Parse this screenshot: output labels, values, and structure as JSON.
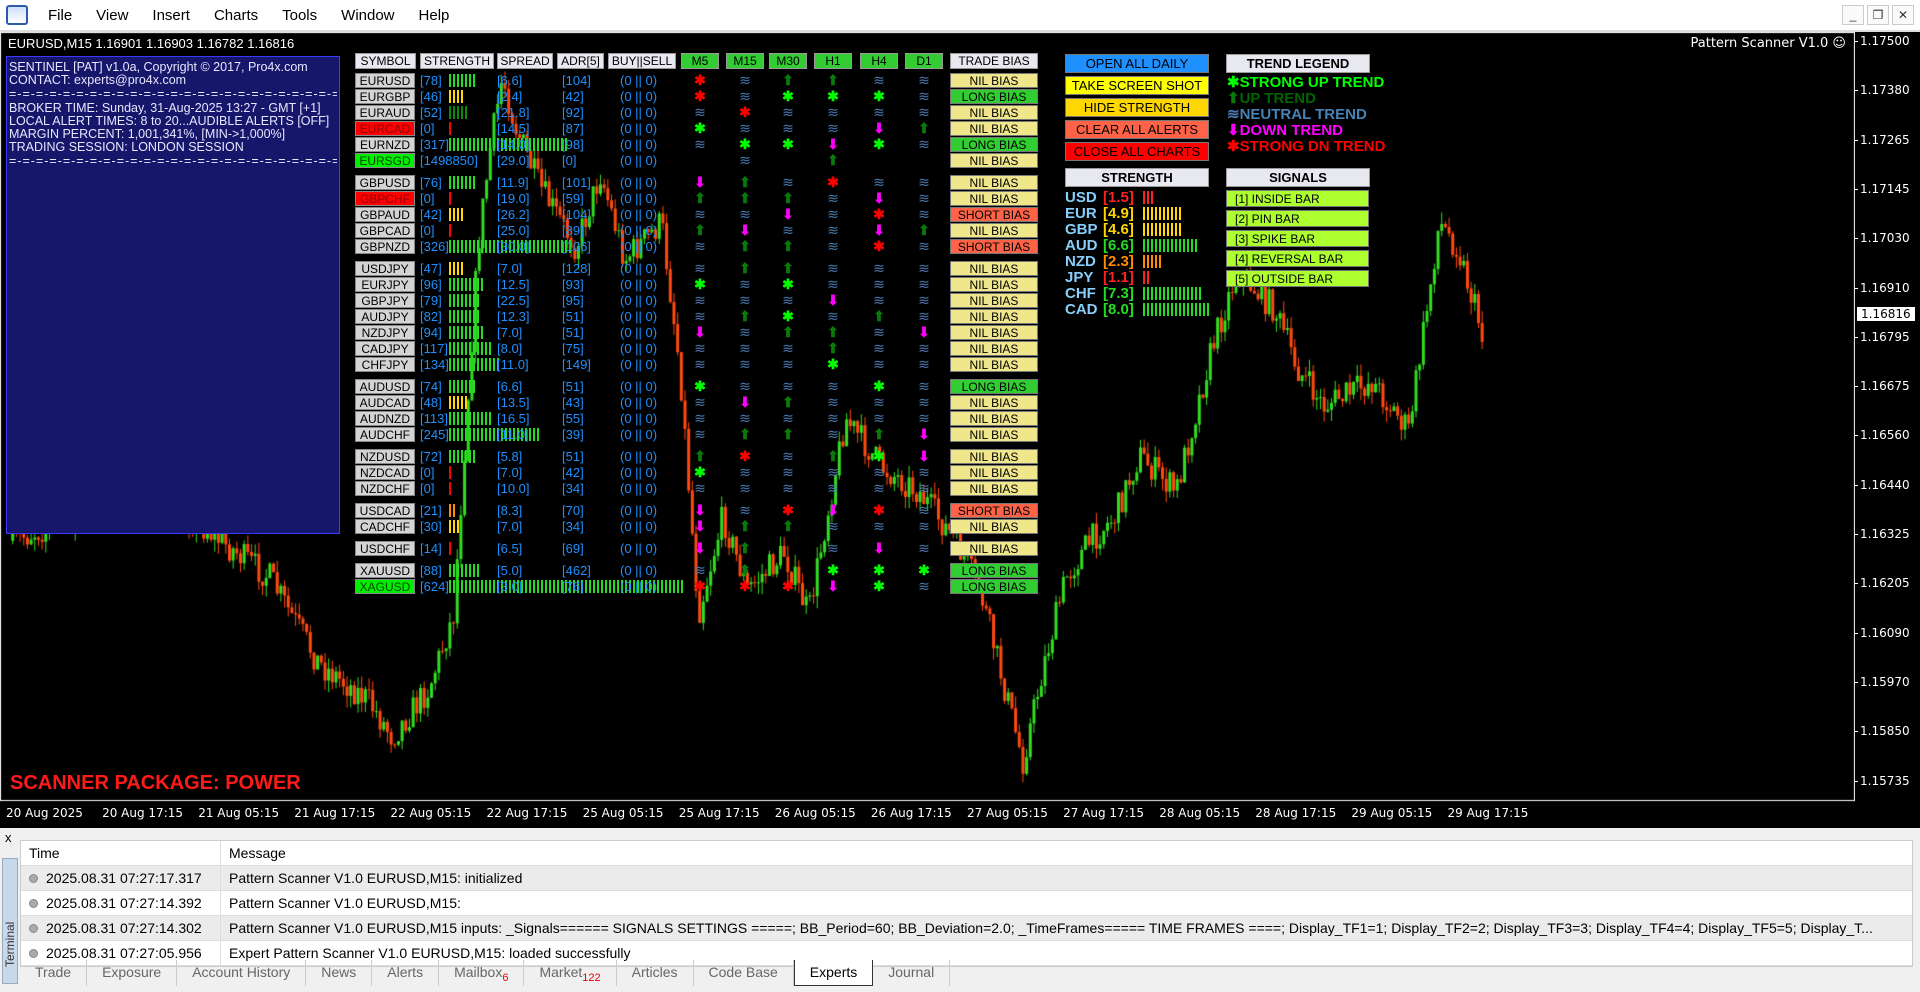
{
  "menu": [
    "File",
    "View",
    "Insert",
    "Charts",
    "Tools",
    "Window",
    "Help"
  ],
  "chart": {
    "title": "EURUSD,M15  1.16901 1.16903 1.16782 1.16816",
    "indicator": "Pattern Scanner V1.0 ☺",
    "current_price": "1.16816",
    "price_ticks": [
      "1.17500",
      "1.17380",
      "1.17265",
      "1.17145",
      "1.17030",
      "1.16910",
      "1.16795",
      "1.16675",
      "1.16560",
      "1.16440",
      "1.16325",
      "1.16205",
      "1.16090",
      "1.15970",
      "1.15850",
      "1.15735"
    ],
    "time_ticks": [
      "20 Aug 2025",
      "20 Aug 17:15",
      "21 Aug 05:15",
      "21 Aug 17:15",
      "22 Aug 05:15",
      "22 Aug 17:15",
      "25 Aug 05:15",
      "25 Aug 17:15",
      "26 Aug 05:15",
      "26 Aug 17:15",
      "27 Aug 05:15",
      "27 Aug 17:15",
      "28 Aug 05:15",
      "28 Aug 17:15",
      "29 Aug 05:15",
      "29 Aug 17:15"
    ],
    "up_color": "#33dd22",
    "down_color": "#ff4a10"
  },
  "info": {
    "lines": [
      "SENTINEL [PAT] v1.0a, Copyright © 2017, Pro4x.com",
      "CONTACT: experts@pro4x.com",
      "=-=-=-=-=-=-=-=-=-=-=-=-=-=-=-=-=-=-=-=-=-=-=-=-=-=-=-=-=-=-=-=-=-=-=-=-",
      "BROKER TIME: Sunday, 31-Aug-2025 13:27 - GMT [+1]",
      "LOCAL ALERT TIMES: 8 to 20...AUDIBLE ALERTS [OFF]",
      "MARGIN PERCENT: 1,001,341%, [MIN->1,000%]",
      "TRADING SESSION: LONDON SESSION",
      "=-=-=-=-=-=-=-=-=-=-=-=-=-=-=-=-=-=-=-=-=-=-=-=-=-=-=-=-=-=-=-=-=-=-=-=-"
    ],
    "package": "SCANNER PACKAGE: POWER"
  },
  "scanner": {
    "headers": {
      "symbol": "SYMBOL",
      "strength": "STRENGTH",
      "spread": "SPREAD",
      "adr": "ADR[5]",
      "buysell": "BUY||SELL",
      "bias": "TRADE BIAS"
    },
    "timeframes": [
      "M5",
      "M15",
      "M30",
      "H1",
      "H4",
      "D1"
    ],
    "groups": [
      [
        {
          "s": "EURUSD",
          "st": 78,
          "sp": "6.6",
          "adr": "104",
          "bs": "(0 || 0)",
          "sig": "XNUUNN",
          "bias": "NIL BIAS"
        },
        {
          "s": "EURGBP",
          "st": 46,
          "sp": "2.4",
          "adr": "42",
          "bs": "(0 || 0)",
          "sig": "XNSSSN",
          "bias": "LONG BIAS"
        },
        {
          "s": "EURAUD",
          "st": 52,
          "sp": "21.8",
          "adr": "92",
          "bs": "(0 || 0)",
          "sig": "NXNNNN",
          "bias": "NIL BIAS"
        },
        {
          "s": "EURCAD",
          "st": 0,
          "sp": "14.5",
          "adr": "87",
          "bs": "(0 || 0)",
          "sig": "SNNNDU",
          "bias": "NIL BIAS",
          "flag": "red"
        },
        {
          "s": "EURNZD",
          "st": 317,
          "sp": "14.0",
          "adr": "98",
          "bs": "(0 || 0)",
          "sig": "NSSDSN",
          "bias": "LONG BIAS"
        },
        {
          "s": "EURSGD",
          "st": 1498850,
          "sp": "29.0",
          "adr": "0",
          "bs": "(0 || 0)",
          "sig": "_N_U__",
          "bias": "NIL BIAS",
          "flag": "green"
        }
      ],
      [
        {
          "s": "GBPUSD",
          "st": 76,
          "sp": "11.9",
          "adr": "101",
          "bs": "(0 || 0)",
          "sig": "DUNXNN",
          "bias": "NIL BIAS"
        },
        {
          "s": "GBPCHF",
          "st": 0,
          "sp": "19.0",
          "adr": "59",
          "bs": "(0 || 0)",
          "sig": "UUUNDN",
          "bias": "NIL BIAS",
          "flag": "red"
        },
        {
          "s": "GBPAUD",
          "st": 42,
          "sp": "26.2",
          "adr": "104",
          "bs": "(0 || 0)",
          "sig": "NNDNXN",
          "bias": "SHORT BIAS"
        },
        {
          "s": "GBPCAD",
          "st": 0,
          "sp": "25.0",
          "adr": "89",
          "bs": "(0 || 0)",
          "sig": "UDNNDU",
          "bias": "NIL BIAS"
        },
        {
          "s": "GBPNZD",
          "st": 326,
          "sp": "30.0",
          "adr": "106",
          "bs": "(0 || 0)",
          "sig": "NUUNXN",
          "bias": "SHORT BIAS"
        }
      ],
      [
        {
          "s": "USDJPY",
          "st": 47,
          "sp": "7.0",
          "adr": "128",
          "bs": "(0 || 0)",
          "sig": "NUUNNN",
          "bias": "NIL BIAS"
        },
        {
          "s": "EURJPY",
          "st": 96,
          "sp": "12.5",
          "adr": "93",
          "bs": "(0 || 0)",
          "sig": "SNSNNN",
          "bias": "NIL BIAS"
        },
        {
          "s": "GBPJPY",
          "st": 79,
          "sp": "22.5",
          "adr": "95",
          "bs": "(0 || 0)",
          "sig": "NNNDNN",
          "bias": "NIL BIAS"
        },
        {
          "s": "AUDJPY",
          "st": 82,
          "sp": "12.3",
          "adr": "51",
          "bs": "(0 || 0)",
          "sig": "NUSNUN",
          "bias": "NIL BIAS"
        },
        {
          "s": "NZDJPY",
          "st": 94,
          "sp": "7.0",
          "adr": "51",
          "bs": "(0 || 0)",
          "sig": "DNUUND",
          "bias": "NIL BIAS"
        },
        {
          "s": "CADJPY",
          "st": 117,
          "sp": "8.0",
          "adr": "75",
          "bs": "(0 || 0)",
          "sig": "NNNUNN",
          "bias": "NIL BIAS"
        },
        {
          "s": "CHFJPY",
          "st": 134,
          "sp": "11.0",
          "adr": "149",
          "bs": "(0 || 0)",
          "sig": "NNNSNN",
          "bias": "NIL BIAS"
        }
      ],
      [
        {
          "s": "AUDUSD",
          "st": 74,
          "sp": "6.6",
          "adr": "51",
          "bs": "(0 || 0)",
          "sig": "SNNNSN",
          "bias": "LONG BIAS"
        },
        {
          "s": "AUDCAD",
          "st": 48,
          "sp": "13.5",
          "adr": "43",
          "bs": "(0 || 0)",
          "sig": "NDUNNN",
          "bias": "NIL BIAS"
        },
        {
          "s": "AUDNZD",
          "st": 113,
          "sp": "16.5",
          "adr": "55",
          "bs": "(0 || 0)",
          "sig": "NNNNNN",
          "bias": "NIL BIAS"
        },
        {
          "s": "AUDCHF",
          "st": 245,
          "sp": "11.0",
          "adr": "39",
          "bs": "(0 || 0)",
          "sig": "NUUNUD",
          "bias": "NIL BIAS"
        }
      ],
      [
        {
          "s": "NZDUSD",
          "st": 72,
          "sp": "5.8",
          "adr": "51",
          "bs": "(0 || 0)",
          "sig": "UXNUSD",
          "bias": "NIL BIAS"
        },
        {
          "s": "NZDCAD",
          "st": 0,
          "sp": "7.0",
          "adr": "42",
          "bs": "(0 || 0)",
          "sig": "SNNNNN",
          "bias": "NIL BIAS"
        },
        {
          "s": "NZDCHF",
          "st": 0,
          "sp": "10.0",
          "adr": "34",
          "bs": "(0 || 0)",
          "sig": "NNNNNN",
          "bias": "NIL BIAS"
        }
      ],
      [
        {
          "s": "USDCAD",
          "st": 21,
          "sp": "8.3",
          "adr": "70",
          "bs": "(0 || 0)",
          "sig": "DNXDXN",
          "bias": "SHORT BIAS"
        },
        {
          "s": "CADCHF",
          "st": 30,
          "sp": "7.0",
          "adr": "34",
          "bs": "(0 || 0)",
          "sig": "DUUNNN",
          "bias": "NIL BIAS"
        }
      ],
      [
        {
          "s": "USDCHF",
          "st": 14,
          "sp": "6.5",
          "adr": "69",
          "bs": "(0 || 0)",
          "sig": "DU_NDN",
          "bias": "NIL BIAS"
        }
      ],
      [
        {
          "s": "XAUUSD",
          "st": 88,
          "sp": "5.0",
          "adr": "462",
          "bs": "(0 || 0)",
          "sig": "NU_SSS",
          "bias": "LONG BIAS"
        },
        {
          "s": "XAGUSD",
          "st": 624,
          "sp": "3.0",
          "adr": "76",
          "bs": "(0 || 0)",
          "sig": "XXXDSN",
          "bias": "LONG BIAS",
          "flag": "green"
        }
      ]
    ],
    "bias_colors": {
      "NIL BIAS": "#f0e68c",
      "LONG BIAS": "#32cd32",
      "SHORT BIAS": "#ff6347"
    },
    "signal_icons": {
      "S": "strong-up-star",
      "U": "up-arrow",
      "N": "neutral-waves",
      "D": "down-arrow",
      "X": "strong-down-star"
    }
  },
  "buttons": [
    {
      "label": "OPEN ALL DAILY",
      "color": "#1e90ff"
    },
    {
      "label": "TAKE SCREEN SHOT",
      "color": "#ffff00"
    },
    {
      "label": "HIDE STRENGTH",
      "color": "#ffd700"
    },
    {
      "label": "CLEAR ALL ALERTS",
      "color": "#ff6347"
    },
    {
      "label": "CLOSE ALL CHARTS",
      "color": "#ff0000"
    }
  ],
  "legend": {
    "title": "TREND LEGEND",
    "items": [
      {
        "label": "STRONG UP TREND",
        "code": "S",
        "color": "#00ff00"
      },
      {
        "label": "UP TREND",
        "code": "U",
        "color": "#006400"
      },
      {
        "label": "NEUTRAL TREND",
        "code": "N",
        "color": "#4682b4"
      },
      {
        "label": "DOWN TREND",
        "code": "D",
        "color": "#ff00ff"
      },
      {
        "label": "STRONG DN TREND",
        "code": "X",
        "color": "#ff0000"
      }
    ]
  },
  "strength": {
    "title": "STRENGTH",
    "items": [
      {
        "c": "USD",
        "v": "1.5"
      },
      {
        "c": "EUR",
        "v": "4.9"
      },
      {
        "c": "GBP",
        "v": "4.6"
      },
      {
        "c": "AUD",
        "v": "6.6"
      },
      {
        "c": "NZD",
        "v": "2.3"
      },
      {
        "c": "JPY",
        "v": "1.1"
      },
      {
        "c": "CHF",
        "v": "7.3"
      },
      {
        "c": "CAD",
        "v": "8.0"
      }
    ]
  },
  "signals": {
    "title": "SIGNALS",
    "items": [
      "[1] INSIDE BAR",
      "[2] PIN BAR",
      "[3] SPIKE BAR",
      "[4] REVERSAL BAR",
      "[5] OUTSIDE BAR"
    ]
  },
  "terminal": {
    "label": "Terminal",
    "close": "x",
    "columns": [
      "Time",
      "Message"
    ],
    "rows": [
      [
        "2025.08.31 07:27:17.317",
        "Pattern Scanner V1.0 EURUSD,M15: initialized"
      ],
      [
        "2025.08.31 07:27:14.392",
        "Pattern Scanner V1.0 EURUSD,M15:"
      ],
      [
        "2025.08.31 07:27:14.302",
        "Pattern Scanner V1.0 EURUSD,M15 inputs: _Signals====== SIGNALS SETTINGS =====; BB_Period=60; BB_Deviation=2.0; _TimeFrames===== TIME FRAMES ====; Display_TF1=1; Display_TF2=2; Display_TF3=3; Display_TF4=4; Display_TF5=5; Display_T..."
      ],
      [
        "2025.08.31 07:27:05.956",
        "Expert Pattern Scanner V1.0 EURUSD,M15: loaded successfully"
      ]
    ],
    "tabs": [
      {
        "label": "Trade"
      },
      {
        "label": "Exposure"
      },
      {
        "label": "Account History"
      },
      {
        "label": "News"
      },
      {
        "label": "Alerts"
      },
      {
        "label": "Mailbox",
        "badge": "6"
      },
      {
        "label": "Market",
        "badge": "122"
      },
      {
        "label": "Articles"
      },
      {
        "label": "Code Base"
      },
      {
        "label": "Experts",
        "active": true
      },
      {
        "label": "Journal"
      }
    ]
  }
}
